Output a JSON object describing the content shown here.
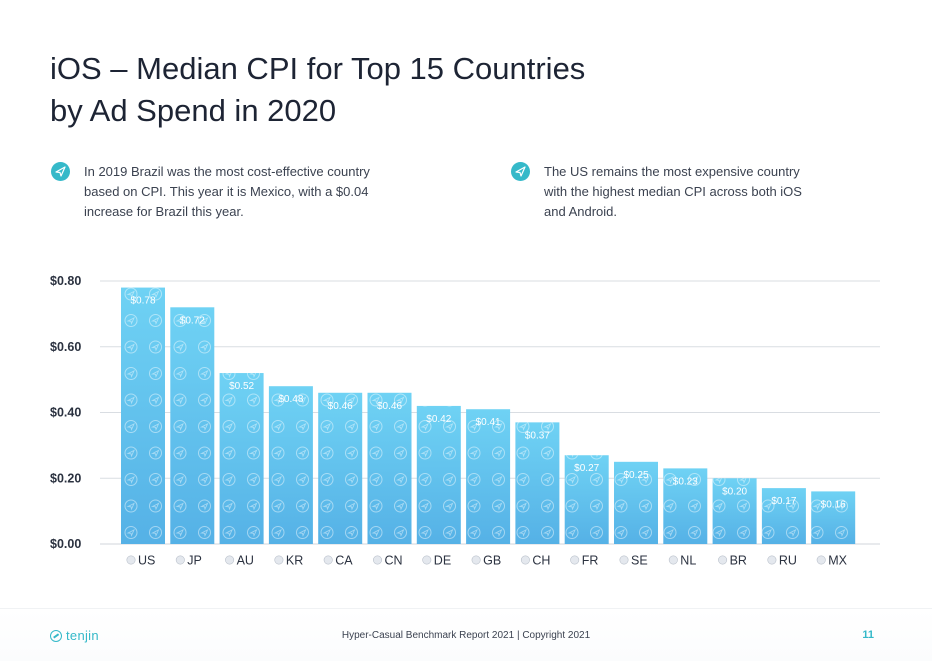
{
  "header": {
    "title_line1": "iOS – Median CPI for Top 15 Countries",
    "title_line2": "by Ad Spend in 2020"
  },
  "notes": [
    {
      "icon": "plane-icon",
      "lines": [
        "In 2019 Brazil was the most cost-effective country",
        "based on CPI. This year it is Mexico, with a $0.04",
        "increase for Brazil this year."
      ]
    },
    {
      "icon": "plane-icon",
      "lines": [
        "The US remains the most expensive country",
        "with the highest median CPI across both iOS",
        "and Android."
      ]
    }
  ],
  "chart_data": {
    "type": "bar",
    "title": "",
    "xlabel": "",
    "ylabel": "",
    "categories": [
      "US",
      "JP",
      "AU",
      "KR",
      "CA",
      "CN",
      "DE",
      "GB",
      "CH",
      "FR",
      "SE",
      "NL",
      "BR",
      "RU",
      "MX"
    ],
    "values": [
      0.78,
      0.72,
      0.52,
      0.48,
      0.46,
      0.46,
      0.42,
      0.41,
      0.37,
      0.27,
      0.25,
      0.23,
      0.2,
      0.17,
      0.16
    ],
    "data_labels": [
      "$0.78",
      "$0.72",
      "$0.52",
      "$0.48",
      "$0.46",
      "$0.46",
      "$0.42",
      "$0.41",
      "$0.37",
      "$0.27",
      "$0.25",
      "$0.23",
      "$0.20",
      "$0.17",
      "$0.16"
    ],
    "ylim": [
      0,
      0.8
    ],
    "yticks": [
      0,
      0.2,
      0.4,
      0.6,
      0.8
    ],
    "ytick_labels": [
      "$0.00",
      "$0.20",
      "$0.40",
      "$0.60",
      "$0.80"
    ],
    "grid": true,
    "legend": "none",
    "bar_color_top": "#6fd2f4",
    "bar_color_bottom": "#55b1e6",
    "flag_icons": [
      "us-flag-icon",
      "jp-flag-icon",
      "au-flag-icon",
      "kr-flag-icon",
      "ca-flag-icon",
      "cn-flag-icon",
      "de-flag-icon",
      "gb-flag-icon",
      "ch-flag-icon",
      "fr-flag-icon",
      "se-flag-icon",
      "nl-flag-icon",
      "br-flag-icon",
      "ru-flag-icon",
      "mx-flag-icon"
    ]
  },
  "footer": {
    "brand": "tenjin",
    "report": "Hyper-Casual Benchmark Report  2021 | Copyright 2021",
    "page_number": "11"
  },
  "colors": {
    "accent": "#35b9c9",
    "title": "#1d2434",
    "grid": "#d9dde2"
  }
}
